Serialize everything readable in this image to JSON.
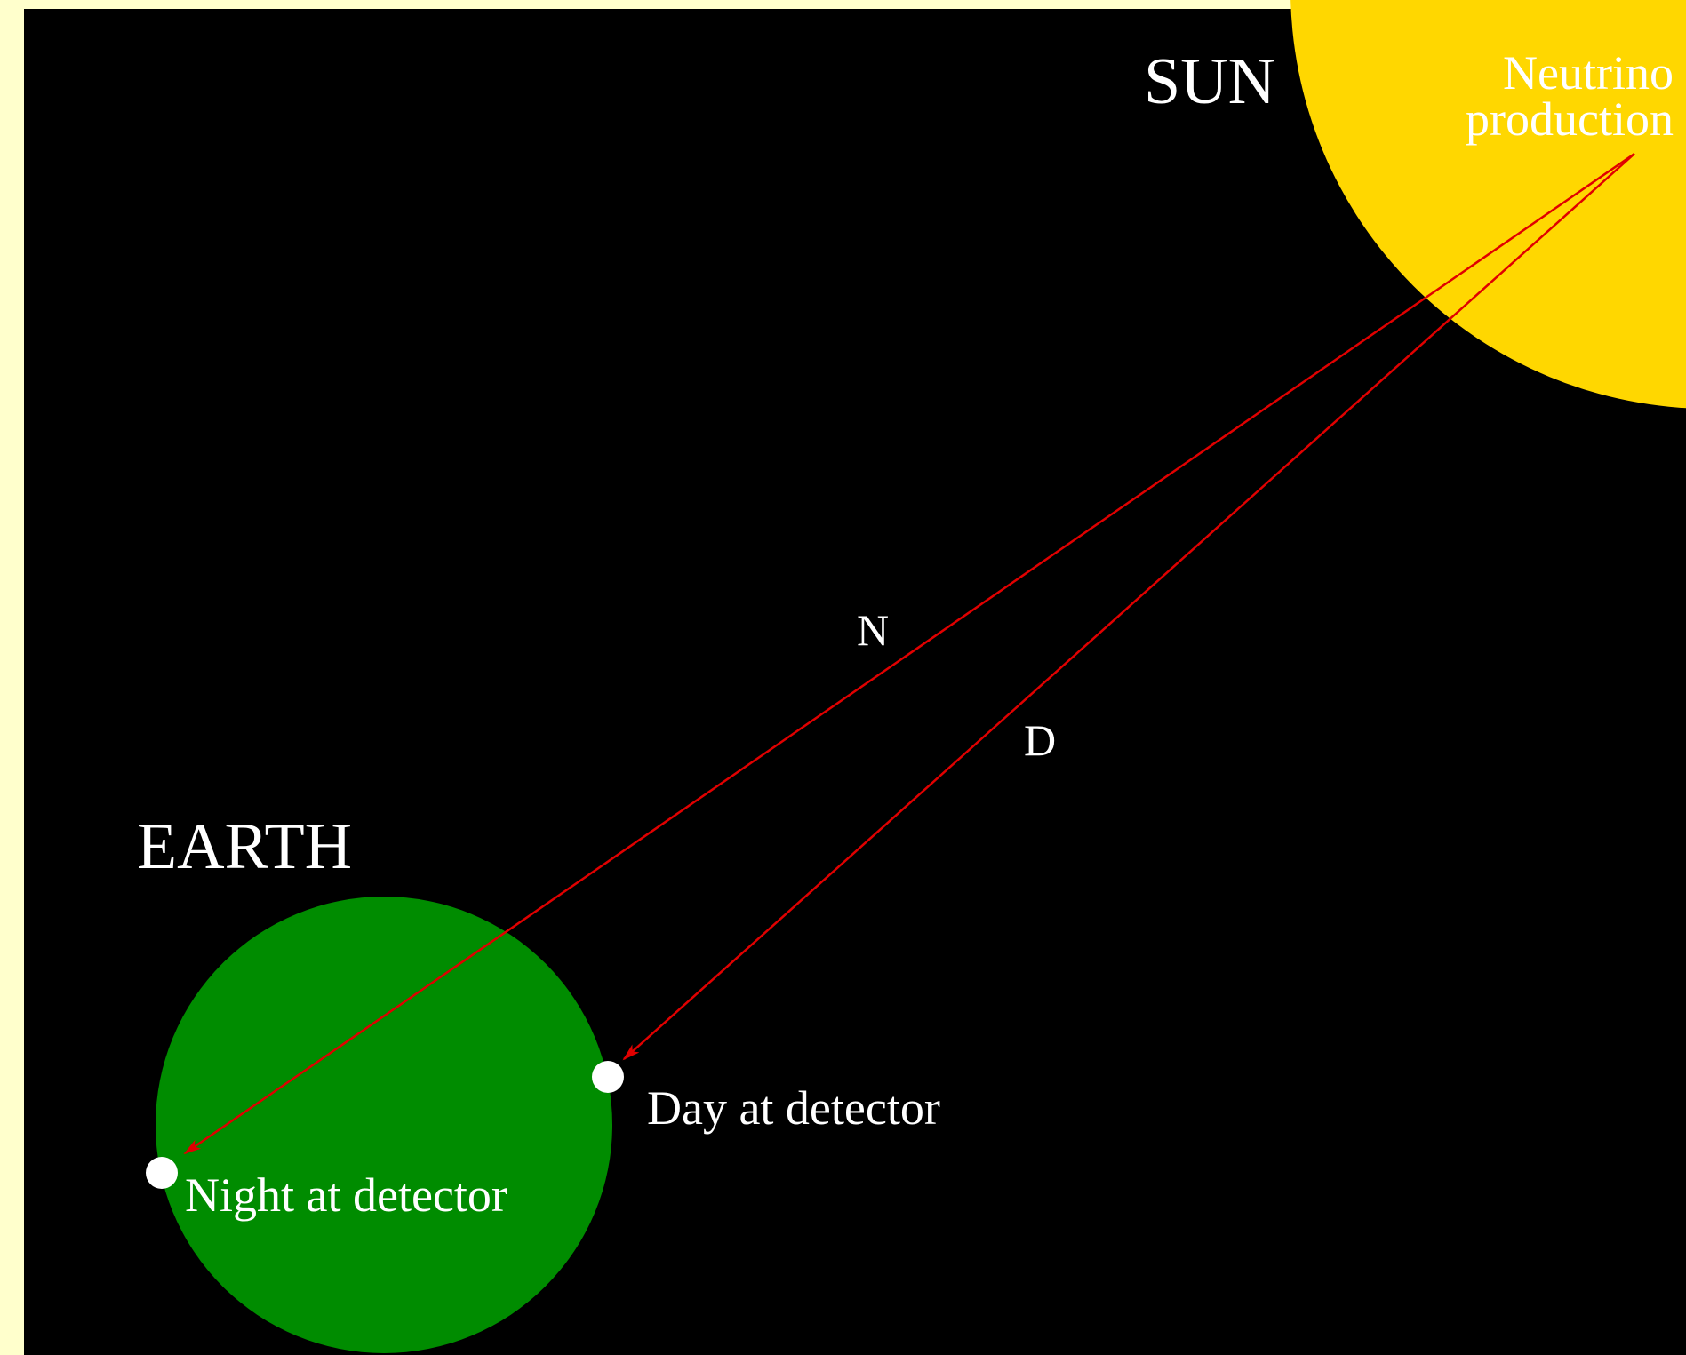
{
  "labels": {
    "sun": "SUN",
    "source_line1": "Neutrino",
    "source_line2": "production",
    "night_path": "N",
    "day_path": "D",
    "earth": "EARTH",
    "day": "Day at detector",
    "night": "Night at detector"
  }
}
